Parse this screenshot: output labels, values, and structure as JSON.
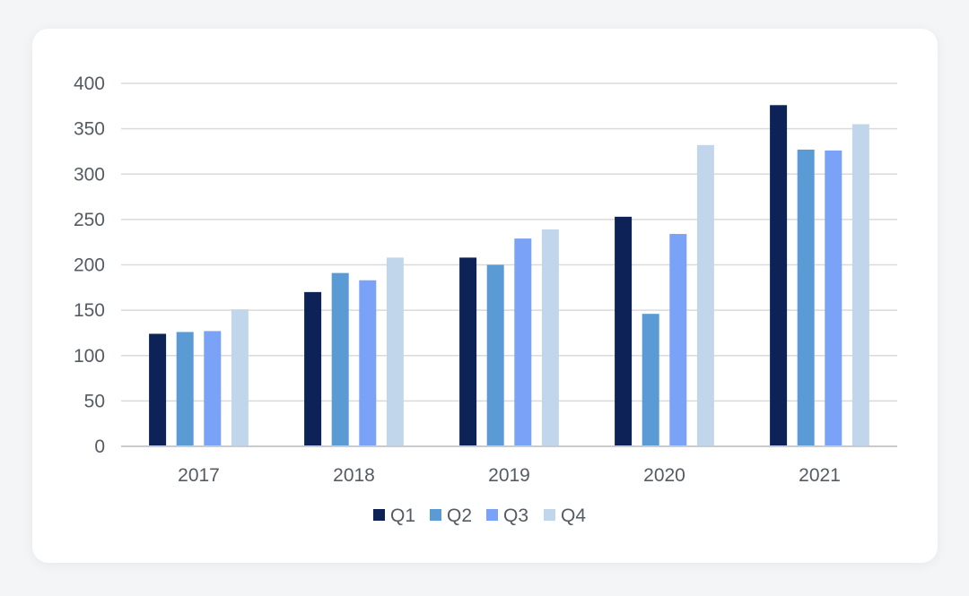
{
  "chart_data": {
    "type": "bar",
    "categories": [
      "2017",
      "2018",
      "2019",
      "2020",
      "2021"
    ],
    "series": [
      {
        "name": "Q1",
        "color": "#0d2257",
        "values": [
          124,
          170,
          208,
          253,
          376
        ]
      },
      {
        "name": "Q2",
        "color": "#5b9bd5",
        "values": [
          126,
          191,
          200,
          146,
          327
        ]
      },
      {
        "name": "Q3",
        "color": "#7aa2f7",
        "values": [
          127,
          183,
          229,
          234,
          326
        ]
      },
      {
        "name": "Q4",
        "color": "#c2d6eb",
        "values": [
          151,
          208,
          239,
          332,
          355
        ]
      }
    ],
    "yticks": [
      "0",
      "50",
      "100",
      "150",
      "200",
      "250",
      "300",
      "350",
      "400"
    ],
    "ylim": [
      0,
      400
    ],
    "grid": true,
    "legend_position": "bottom",
    "title": "",
    "xlabel": "",
    "ylabel": ""
  }
}
